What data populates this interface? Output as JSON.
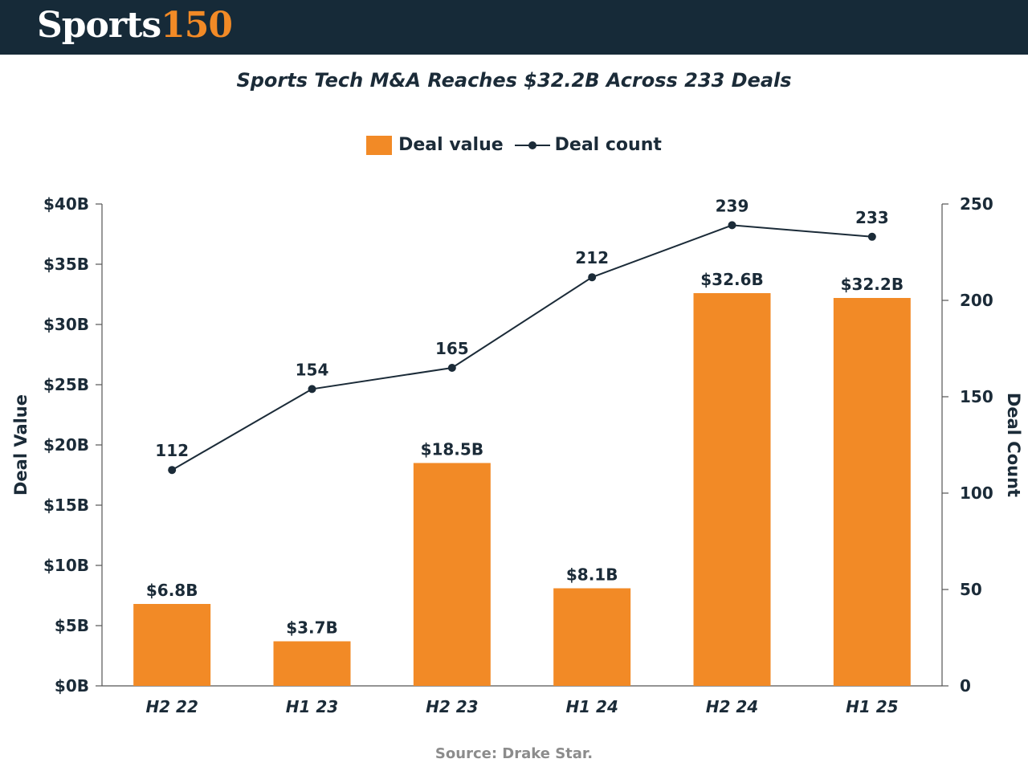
{
  "header": {
    "brand_part1": "Sports",
    "brand_part2": "150"
  },
  "colors": {
    "header_bg": "#162a38",
    "bar": "#f28a26",
    "line": "#1b2b38",
    "text": "#1b2b38",
    "source": "#8c8c8c"
  },
  "chart_data": {
    "type": "bar",
    "title": "Sports Tech M&A Reaches $32.2B Across 233 Deals",
    "categories": [
      "H2 22",
      "H1 23",
      "H2 23",
      "H1 24",
      "H2 24",
      "H1 25"
    ],
    "series": [
      {
        "name": "Deal value",
        "type": "bar",
        "axis": "left",
        "values": [
          6.8,
          3.7,
          18.5,
          8.1,
          32.6,
          32.2
        ],
        "labels": [
          "$6.8B",
          "$3.7B",
          "$18.5B",
          "$8.1B",
          "$32.6B",
          "$32.2B"
        ]
      },
      {
        "name": "Deal count",
        "type": "line",
        "axis": "right",
        "values": [
          112,
          154,
          165,
          212,
          239,
          233
        ],
        "labels": [
          "112",
          "154",
          "165",
          "212",
          "239",
          "233"
        ]
      }
    ],
    "ylabel": "Deal Value",
    "y2label": "Deal Count",
    "ylim": [
      0,
      40
    ],
    "y2lim": [
      0,
      250
    ],
    "yticks": [
      0,
      5,
      10,
      15,
      20,
      25,
      30,
      35,
      40
    ],
    "ytick_labels": [
      "$0B",
      "$5B",
      "$10B",
      "$15B",
      "$20B",
      "$25B",
      "$30B",
      "$35B",
      "$40B"
    ],
    "y2ticks": [
      0,
      50,
      100,
      150,
      200,
      250
    ],
    "y2tick_labels": [
      "0",
      "50",
      "100",
      "150",
      "200",
      "250"
    ],
    "legend_position": "top-center",
    "grid": false
  },
  "footer": {
    "source": "Source: Drake Star."
  }
}
